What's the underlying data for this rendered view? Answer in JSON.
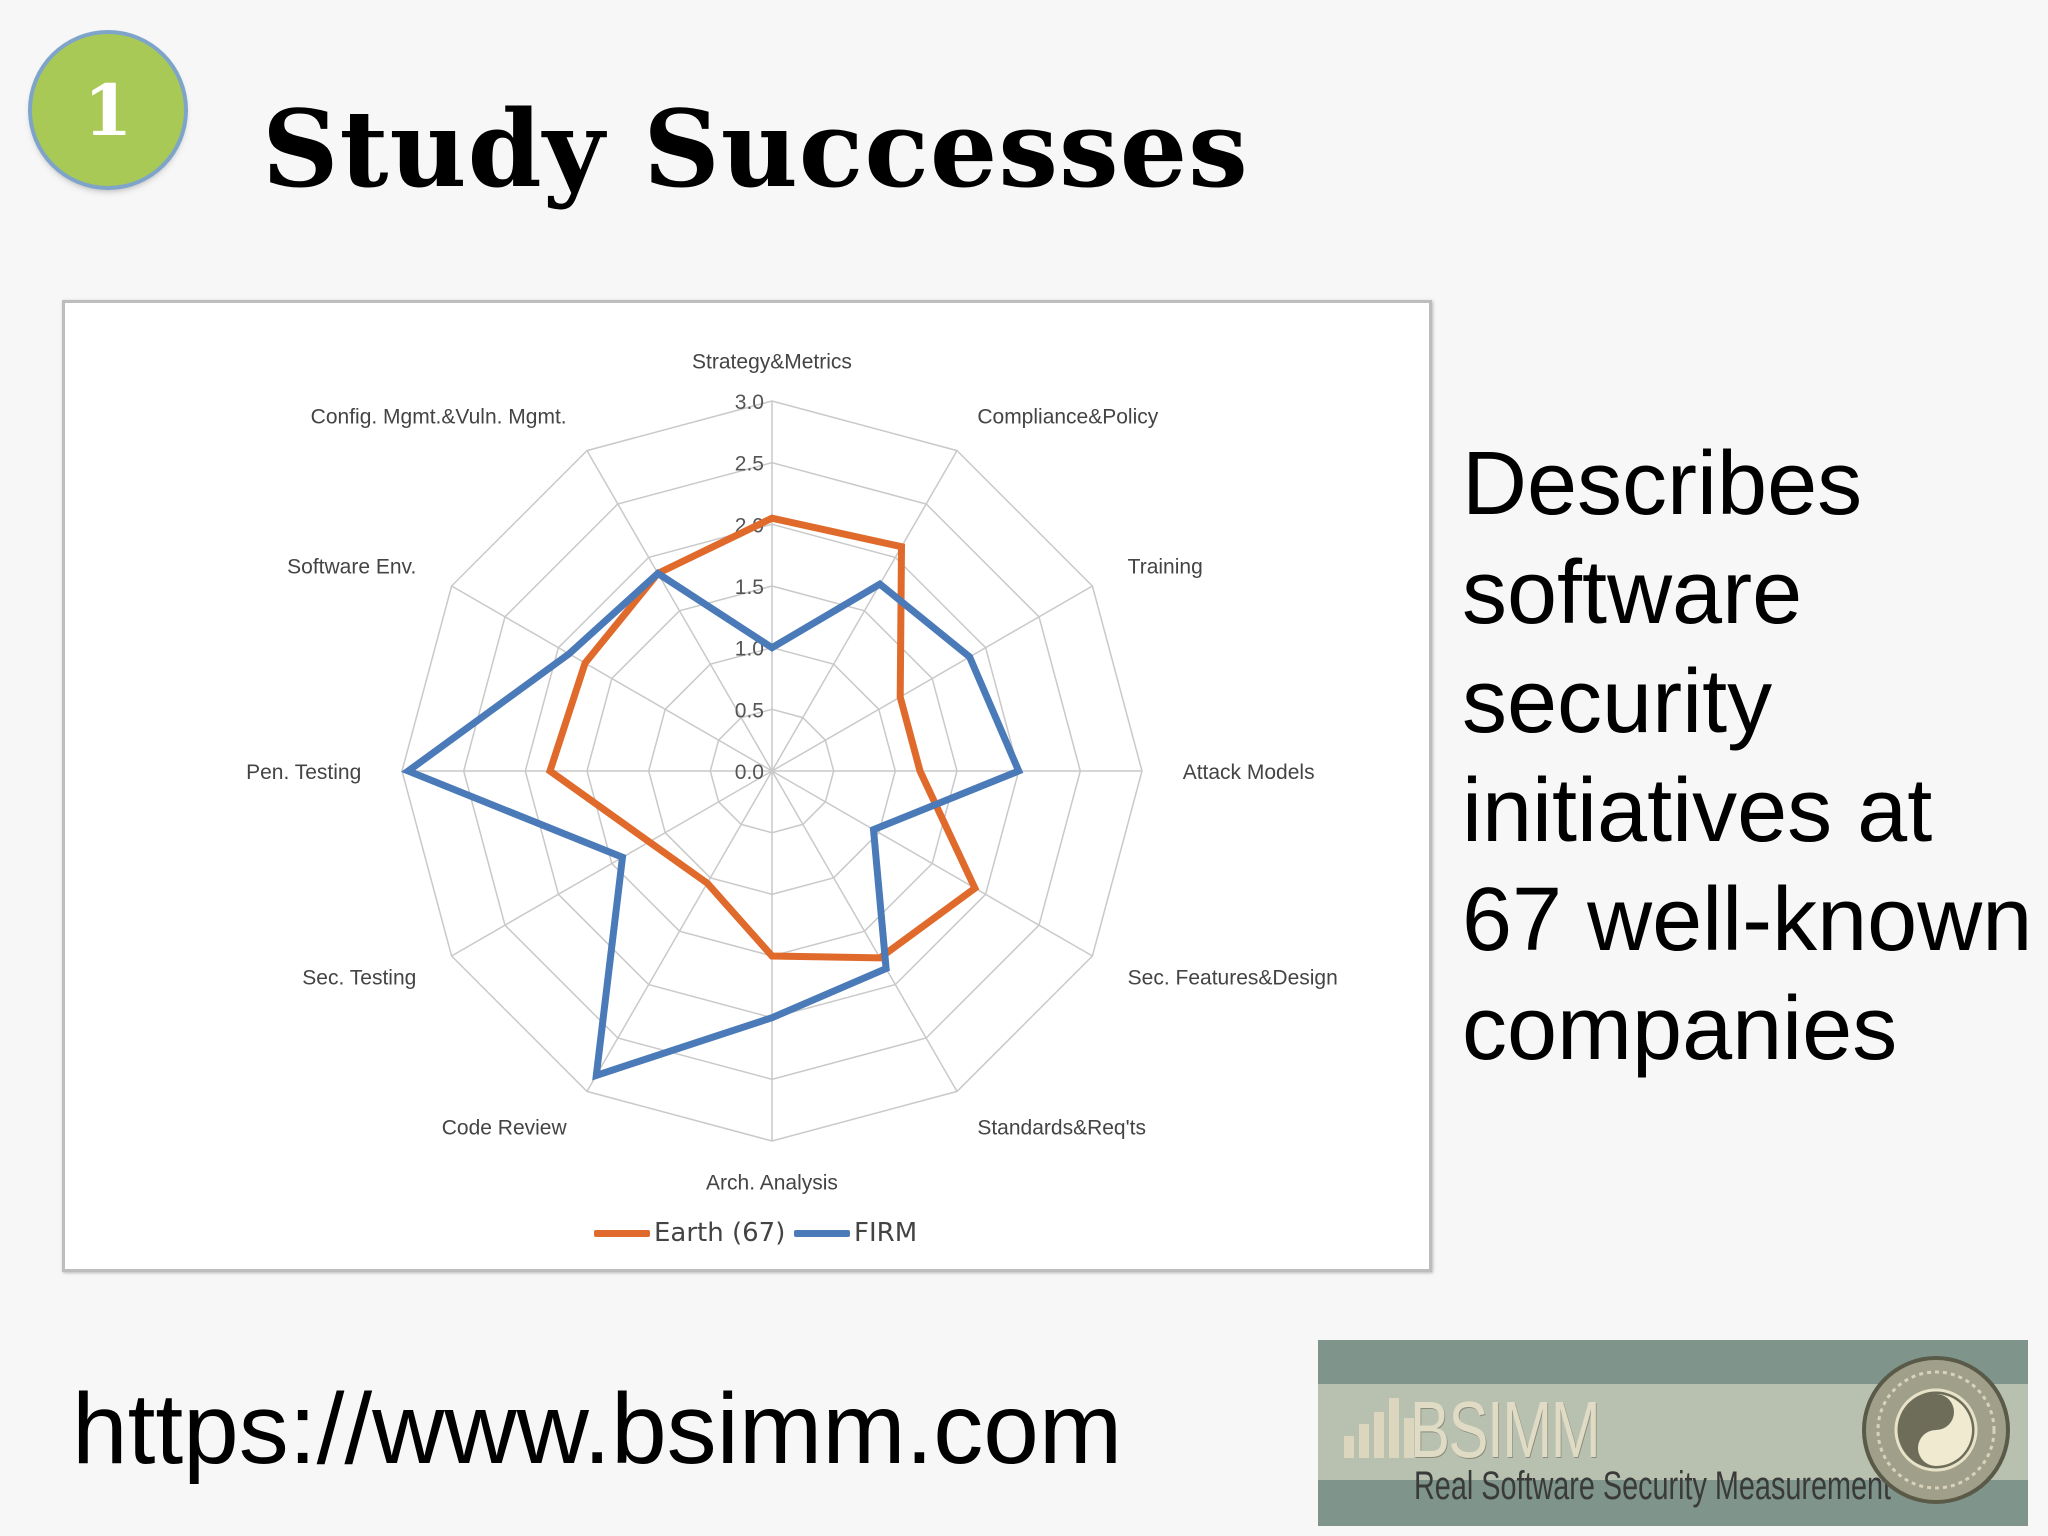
{
  "slide": {
    "badge": "1",
    "title": "Study Successes",
    "description": "Describes software security initiatives at 67 well-known companies",
    "url": "https://www.bsimm.com",
    "logo_text": "BSIMM",
    "logo_tagline": "Real Software Security Measurement"
  },
  "chart_data": {
    "type": "radar",
    "categories": [
      "Strategy&Metrics",
      "Compliance&Policy",
      "Training",
      "Attack Models",
      "Sec. Features&Design",
      "Standards&Req'ts",
      "Arch. Analysis",
      "Code Review",
      "Sec. Testing",
      "Pen. Testing",
      "Software Env.",
      "Config. Mgmt.&Vuln. Mgmt."
    ],
    "tick_labels": [
      "0.0",
      "0.5",
      "1.0",
      "1.5",
      "2.0",
      "2.5",
      "3.0"
    ],
    "rlim": [
      0,
      3
    ],
    "grid": true,
    "legend_position": "bottom",
    "series": [
      {
        "name": "Earth (67)",
        "color": "#e06a2b",
        "values": [
          2.05,
          2.1,
          1.2,
          1.2,
          1.9,
          1.75,
          1.5,
          1.05,
          1.15,
          1.8,
          1.75,
          1.85
        ]
      },
      {
        "name": "FIRM",
        "color": "#4a7ab8",
        "values": [
          1.0,
          1.75,
          1.85,
          2.0,
          0.95,
          1.85,
          2.0,
          2.85,
          1.4,
          2.95,
          1.9,
          1.85
        ]
      }
    ]
  }
}
